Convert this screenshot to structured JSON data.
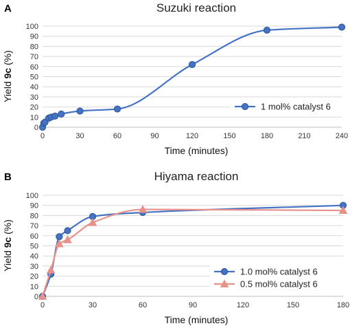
{
  "chart_data": [
    {
      "type": "line",
      "panel": "A",
      "title": "Suzuki reaction",
      "xlabel": "Time (minutes)",
      "ylabel_prefix": "Yield ",
      "ylabel_bold": "9c",
      "ylabel_suffix": " (%)",
      "xlim": [
        0,
        240
      ],
      "ylim": [
        0,
        100
      ],
      "x_ticks": [
        "0",
        "30",
        "60",
        "90",
        "120",
        "150",
        "180",
        "210",
        "240"
      ],
      "y_ticks": [
        "0",
        "10",
        "20",
        "30",
        "40",
        "50",
        "60",
        "70",
        "80",
        "90",
        "100"
      ],
      "grid": "horizontal",
      "legend_position": "right",
      "series": [
        {
          "name": "1 mol% catalyst 6",
          "color": "#4472c4",
          "marker": "circle",
          "x": [
            0,
            1,
            2,
            5,
            7,
            10,
            15,
            30,
            60,
            120,
            180,
            240
          ],
          "y": [
            0,
            4,
            5,
            9,
            10,
            11,
            13,
            16,
            18,
            62,
            96,
            99
          ]
        }
      ]
    },
    {
      "type": "line",
      "panel": "B",
      "title": "Hiyama reaction",
      "xlabel": "Time (minutes)",
      "ylabel_prefix": "Yield ",
      "ylabel_bold": "9c",
      "ylabel_suffix": " (%)",
      "xlim": [
        0,
        180
      ],
      "ylim": [
        0,
        100
      ],
      "x_ticks": [
        "0",
        "30",
        "60",
        "90",
        "120",
        "150",
        "180"
      ],
      "y_ticks": [
        "0",
        "10",
        "20",
        "30",
        "40",
        "50",
        "60",
        "70",
        "80",
        "90",
        "100"
      ],
      "grid": "horizontal",
      "legend_position": "bottom-right",
      "series": [
        {
          "name": "1.0 mol% catalyst 6",
          "color": "#4472c4",
          "marker": "circle",
          "x": [
            0,
            5,
            10,
            15,
            30,
            60,
            180
          ],
          "y": [
            0,
            22,
            59,
            65,
            79,
            83,
            90
          ]
        },
        {
          "name": "0.5 mol% catalyst 6",
          "color": "#e8908a",
          "marker": "triangle",
          "x": [
            0,
            5,
            10,
            15,
            30,
            60,
            180
          ],
          "y": [
            0,
            26,
            52,
            56,
            73,
            86,
            85
          ]
        }
      ]
    }
  ]
}
